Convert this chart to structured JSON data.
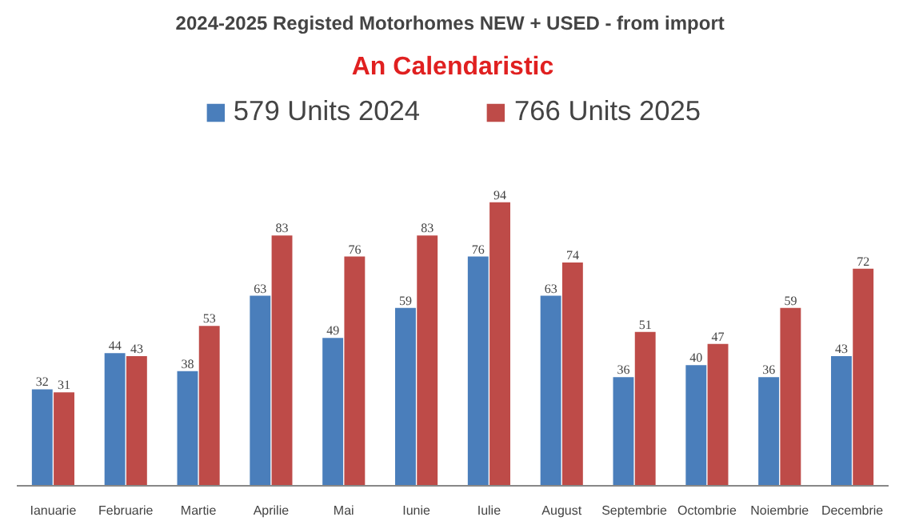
{
  "chart_data": {
    "type": "bar",
    "title": "2024-2025 Registed Motorhomes NEW + USED -  from import",
    "subtitle": "An Calendaristic",
    "categories": [
      "Ianuarie",
      "Februarie",
      "Martie",
      "Aprilie",
      "Mai",
      "Iunie",
      "Iulie",
      "August",
      "Septembrie",
      "Octombrie",
      "Noiembrie",
      "Decembrie"
    ],
    "series": [
      {
        "name": "579 Units 2024",
        "color": "#4a7ebb",
        "values": [
          32,
          44,
          38,
          63,
          49,
          59,
          76,
          63,
          36,
          40,
          36,
          43
        ]
      },
      {
        "name": "766 Units 2025",
        "color": "#be4b48",
        "values": [
          31,
          43,
          53,
          83,
          76,
          83,
          94,
          74,
          51,
          47,
          59,
          72
        ]
      }
    ],
    "data_labels": true,
    "legend": "top"
  }
}
